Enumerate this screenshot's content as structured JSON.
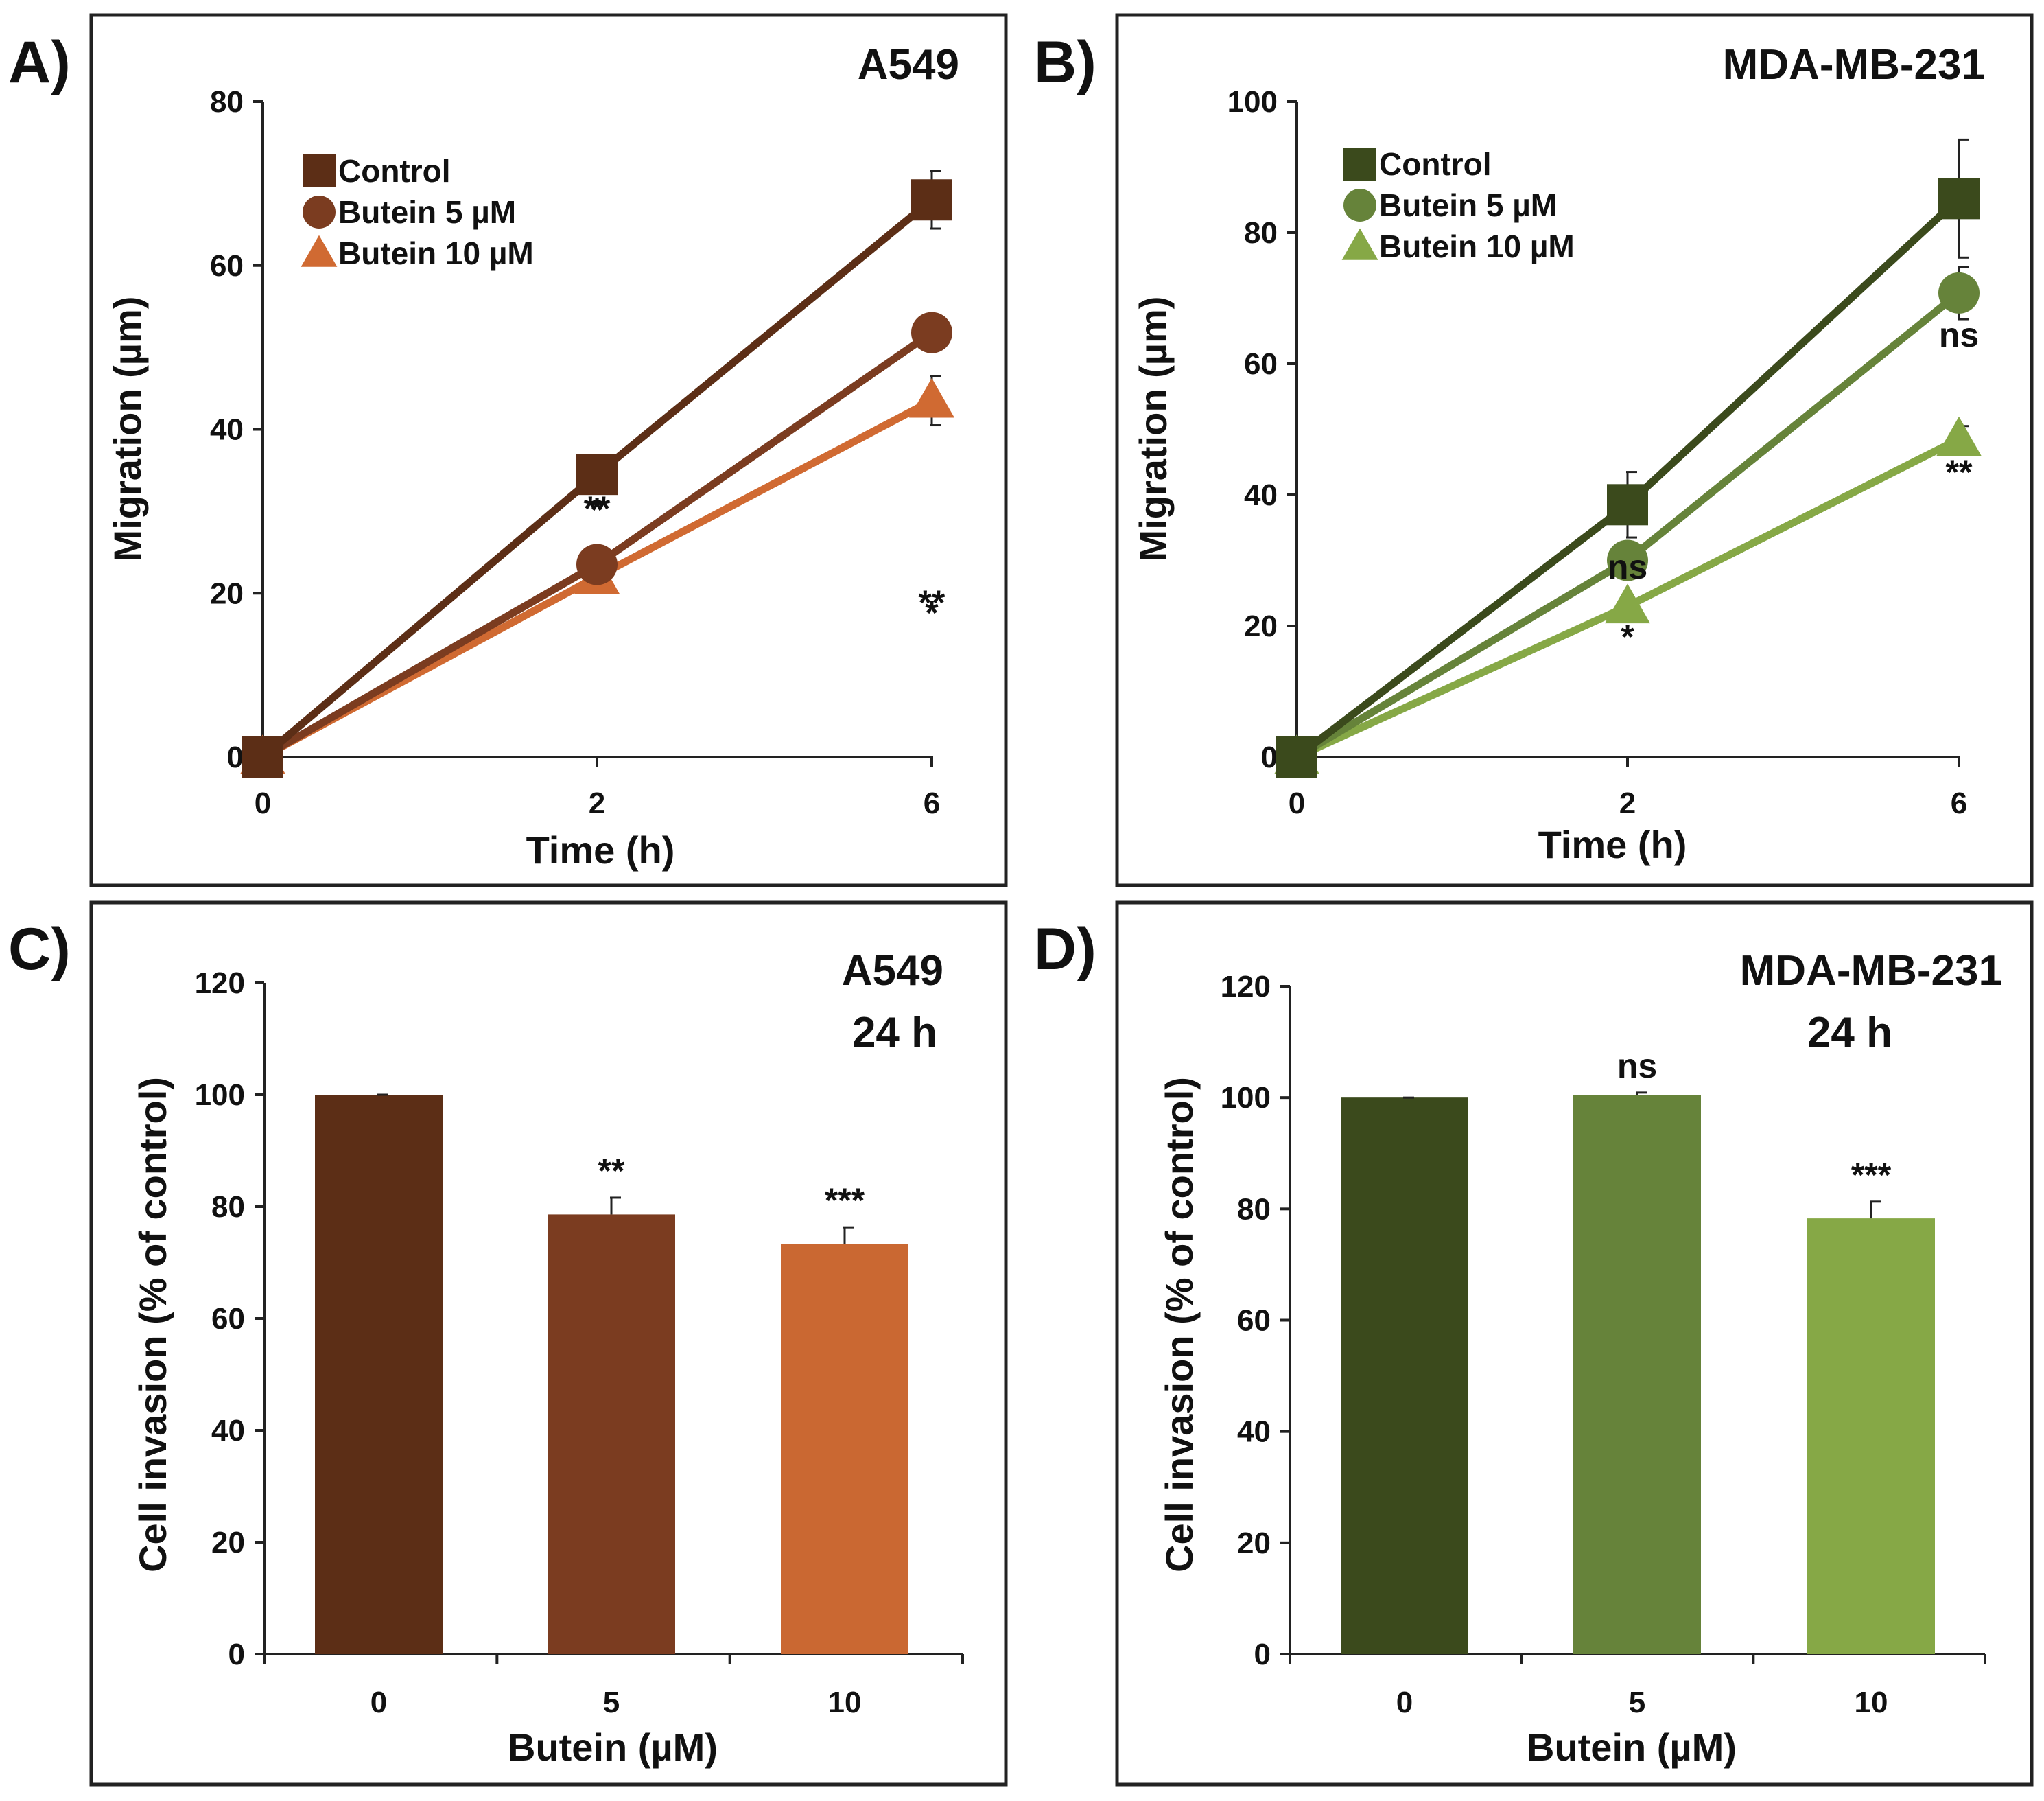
{
  "figure": {
    "panels": [
      {
        "letter": "A)",
        "title_lines": [
          "A549"
        ]
      },
      {
        "letter": "B)",
        "title_lines": [
          "MDA-MB-231"
        ]
      },
      {
        "letter": "C)",
        "title_lines": [
          "A549",
          "24 h"
        ]
      },
      {
        "letter": "D)",
        "title_lines": [
          "MDA-MB-231",
          "24 h"
        ]
      }
    ]
  },
  "chart_data": [
    {
      "type": "line",
      "panel": "A)",
      "title": "A549",
      "xlabel": "Time (h)",
      "ylabel": "Migration (µm)",
      "x": [
        0,
        2,
        6
      ],
      "x_tick_labels": [
        "0",
        "2",
        "6"
      ],
      "ylim": [
        0,
        80
      ],
      "y_ticks": [
        0,
        20,
        40,
        60,
        80
      ],
      "legend_position": "top-left",
      "series": [
        {
          "name": "Control",
          "marker": "square",
          "color": "#5c2e16",
          "values": [
            0,
            34.5,
            68
          ],
          "errors": [
            0,
            0,
            3.5
          ],
          "annotations": [
            "",
            "",
            ""
          ]
        },
        {
          "name": "Butein 5 µM",
          "marker": "circle",
          "color": "#7b3c20",
          "values": [
            0,
            23.5,
            51.8
          ],
          "errors": [
            0,
            0,
            0
          ],
          "annotations": [
            "",
            "*",
            "*"
          ]
        },
        {
          "name": "Butein 10 µM",
          "marker": "triangle",
          "color": "#d06a32",
          "values": [
            0,
            22,
            43.5
          ],
          "errors": [
            0,
            0,
            3
          ],
          "annotations": [
            "",
            "**",
            "**"
          ]
        }
      ]
    },
    {
      "type": "line",
      "panel": "B)",
      "title": "MDA-MB-231",
      "xlabel": "Time (h)",
      "ylabel": "Migration (µm)",
      "x": [
        0,
        2,
        6
      ],
      "x_tick_labels": [
        "0",
        "2",
        "6"
      ],
      "ylim": [
        0,
        100
      ],
      "y_ticks": [
        0,
        20,
        40,
        60,
        80,
        100
      ],
      "legend_position": "top-left",
      "series": [
        {
          "name": "Control",
          "marker": "square",
          "color": "#3b4a1c",
          "values": [
            0,
            38.5,
            85.2
          ],
          "errors": [
            0,
            5,
            9
          ],
          "annotations": [
            "",
            "",
            ""
          ]
        },
        {
          "name": "Butein 5 µM",
          "marker": "circle",
          "color": "#66833a",
          "values": [
            0,
            30,
            70.8
          ],
          "errors": [
            0,
            0,
            4
          ],
          "annotations": [
            "",
            "ns",
            "ns"
          ]
        },
        {
          "name": "Butein 10 µM",
          "marker": "triangle",
          "color": "#86a846",
          "values": [
            0,
            23,
            48.5
          ],
          "errors": [
            0,
            0,
            2
          ],
          "annotations": [
            "",
            "*",
            "**"
          ]
        }
      ]
    },
    {
      "type": "bar",
      "panel": "C)",
      "title": "A549 24 h",
      "xlabel": "Butein (µM)",
      "ylabel": "Cell invasion (% of control)",
      "categories": [
        "0",
        "5",
        "10"
      ],
      "values": [
        100,
        78.6,
        73.3
      ],
      "errors": [
        0,
        3,
        3
      ],
      "annotations": [
        "",
        "**",
        "***"
      ],
      "colors": [
        "#5c2e16",
        "#7b3c20",
        "#ca6832"
      ],
      "ylim": [
        0,
        120
      ],
      "y_ticks": [
        0,
        20,
        40,
        60,
        80,
        100,
        120
      ]
    },
    {
      "type": "bar",
      "panel": "D)",
      "title": "MDA-MB-231 24 h",
      "xlabel": "Butein (µM)",
      "ylabel": "Cell invasion (% of control)",
      "categories": [
        "0",
        "5",
        "10"
      ],
      "values": [
        100,
        100.4,
        78.3
      ],
      "errors": [
        0,
        0.5,
        3
      ],
      "annotations": [
        "",
        "ns",
        "***"
      ],
      "colors": [
        "#3b4a1c",
        "#66833a",
        "#86a846"
      ],
      "ylim": [
        0,
        120
      ],
      "y_ticks": [
        0,
        20,
        40,
        60,
        80,
        100,
        120
      ]
    }
  ]
}
